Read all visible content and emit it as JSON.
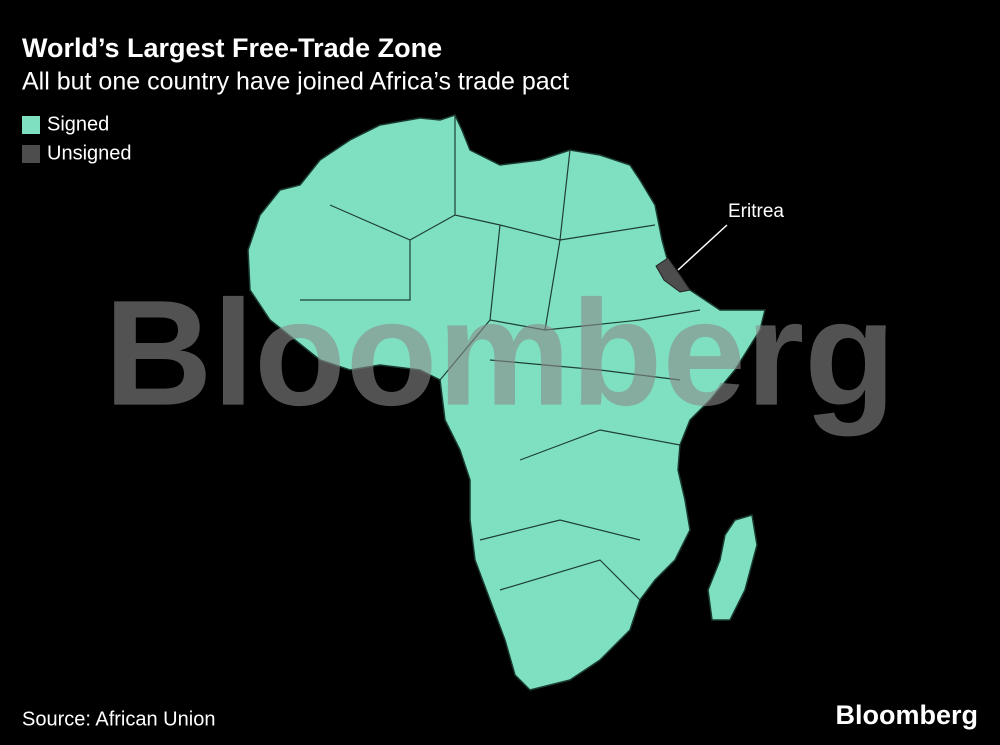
{
  "header": {
    "title": "World’s Largest Free-Trade Zone",
    "subtitle": "All but one country have joined Africa’s trade pact"
  },
  "legend": [
    {
      "label": "Signed",
      "color": "#7fe0c1"
    },
    {
      "label": "Unsigned",
      "color": "#4d4d4d"
    }
  ],
  "annotation": "Eritrea",
  "watermark": "Bloomberg",
  "source": "Source: African Union",
  "logo": "Bloomberg"
}
